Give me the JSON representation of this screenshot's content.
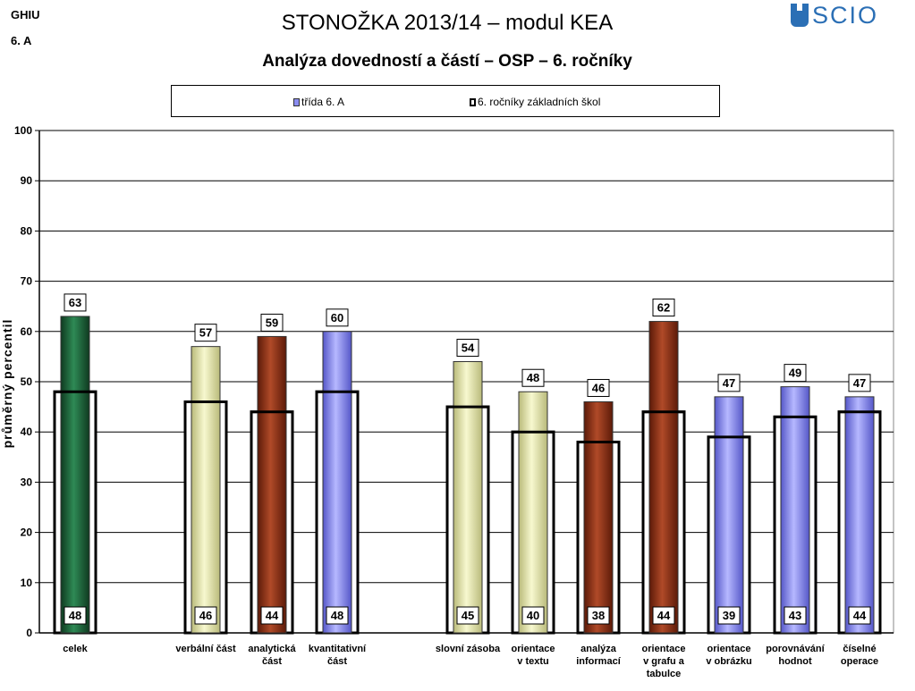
{
  "header": {
    "school_code": "GHIU",
    "class_code": "6. A",
    "title": "STONOŽKA 2013/14 – modul KEA",
    "subtitle": "Analýza dovedností a částí – OSP – 6. ročníky",
    "logo_text": "SCIO"
  },
  "legend": {
    "class_label": "třída  6. A",
    "national_label": "6. ročníky základních škol"
  },
  "colors": {
    "dark_green": "#1c5a36",
    "olive": "#e6e7a8",
    "dark_red": "#8a2d14",
    "blue": "#8a8cf0",
    "frame": "#000000",
    "grid": "#000000"
  },
  "chart_data": {
    "type": "bar",
    "ylabel": "průměrný percentil",
    "ylim": [
      0,
      100
    ],
    "yticks": [
      0,
      10,
      20,
      30,
      40,
      50,
      60,
      70,
      80,
      90,
      100
    ],
    "grid": true,
    "legend_position": "top",
    "categories": [
      {
        "label": [
          "celek"
        ],
        "class_value": 63,
        "national_value": 48,
        "color": "dark_green"
      },
      {
        "label": [
          "verbální část"
        ],
        "class_value": 57,
        "national_value": 46,
        "color": "olive"
      },
      {
        "label": [
          "analytická",
          "část"
        ],
        "class_value": 59,
        "national_value": 44,
        "color": "dark_red"
      },
      {
        "label": [
          "kvantitativní",
          "část"
        ],
        "class_value": 60,
        "national_value": 48,
        "color": "blue"
      },
      {
        "label": [
          "slovní zásoba"
        ],
        "class_value": 54,
        "national_value": 45,
        "color": "olive"
      },
      {
        "label": [
          "orientace",
          "v textu"
        ],
        "class_value": 48,
        "national_value": 40,
        "color": "olive"
      },
      {
        "label": [
          "analýza",
          "informací"
        ],
        "class_value": 46,
        "national_value": 38,
        "color": "dark_red"
      },
      {
        "label": [
          "orientace",
          "v grafu a",
          "tabulce"
        ],
        "class_value": 62,
        "national_value": 44,
        "color": "dark_red"
      },
      {
        "label": [
          "orientace",
          "v obrázku"
        ],
        "class_value": 47,
        "national_value": 39,
        "color": "blue"
      },
      {
        "label": [
          "porovnávání",
          "hodnot"
        ],
        "class_value": 49,
        "national_value": 43,
        "color": "blue"
      },
      {
        "label": [
          "číselné",
          "operace"
        ],
        "class_value": 47,
        "national_value": 44,
        "color": "blue"
      }
    ],
    "series": [
      {
        "name": "třída  6. A",
        "values": [
          63,
          57,
          59,
          60,
          54,
          48,
          46,
          62,
          47,
          49,
          47
        ]
      },
      {
        "name": "6. ročníky základních škol",
        "values": [
          48,
          46,
          44,
          48,
          45,
          40,
          38,
          44,
          39,
          43,
          44
        ]
      }
    ]
  }
}
